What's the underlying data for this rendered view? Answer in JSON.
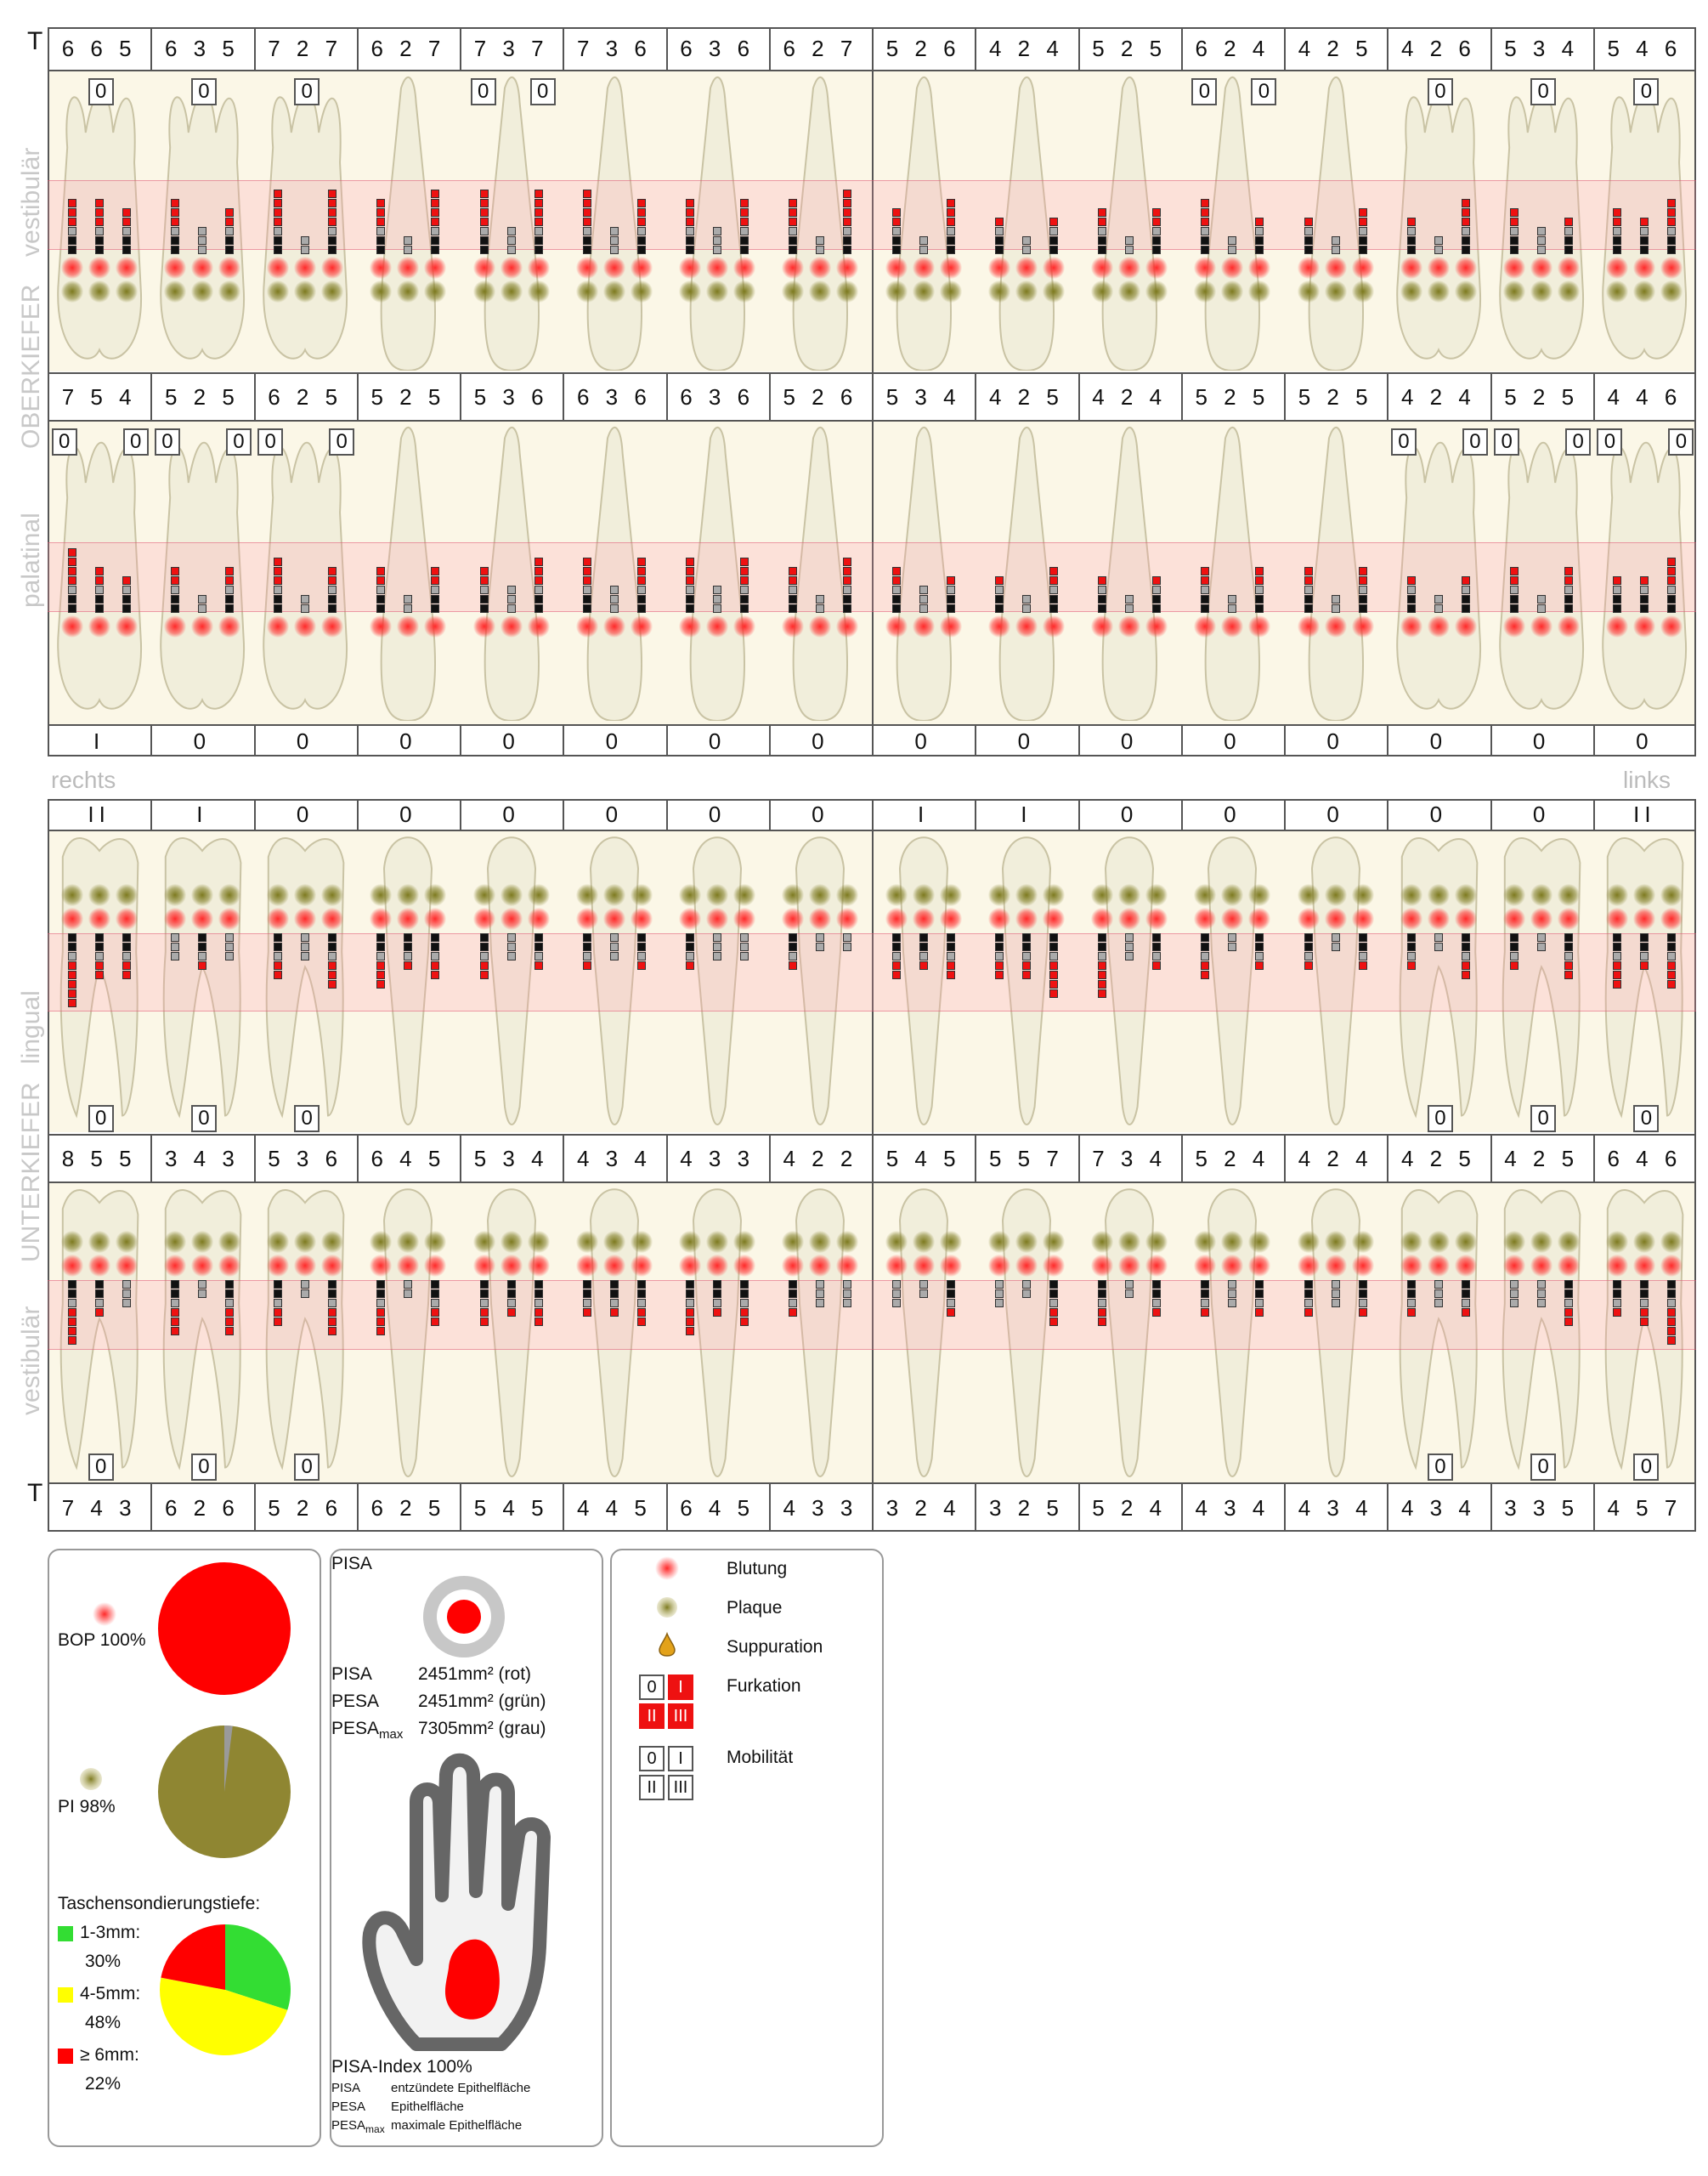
{
  "labels": {
    "t_top": "T",
    "t_bottom": "T",
    "vestibulaer_top": "vestibulär",
    "oberkiefer": "OBERKIEFER",
    "palatinal": "palatinal",
    "lingual": "lingual",
    "unterkiefer": "UNTERKIEFER",
    "vestibulaer_bottom": "vestibulär",
    "rechts": "rechts",
    "links": "links"
  },
  "upper_vest_depths": [
    "6 6 5",
    "6 3 5",
    "7 2 7",
    "6 2 7",
    "7 3 7",
    "7 3 6",
    "6 3 6",
    "6 2 7",
    "5 2 6",
    "4 2 4",
    "5 2 5",
    "6 2 4",
    "4 2 5",
    "4 2 6",
    "5 3 4",
    "5 4 6"
  ],
  "upper_pal_depths": [
    "7 5 4",
    "5 2 5",
    "6 2 5",
    "5 2 5",
    "5 3 6",
    "6 3 6",
    "6 3 6",
    "5 2 6",
    "5 3 4",
    "4 2 5",
    "4 2 4",
    "5 2 5",
    "5 2 5",
    "4 2 4",
    "5 2 5",
    "4 4 6"
  ],
  "upper_mobility": [
    "I",
    "0",
    "0",
    "0",
    "0",
    "0",
    "0",
    "0",
    "0",
    "0",
    "0",
    "0",
    "0",
    "0",
    "0",
    "0"
  ],
  "lower_mobility": [
    "II",
    "I",
    "0",
    "0",
    "0",
    "0",
    "0",
    "0",
    "I",
    "I",
    "0",
    "0",
    "0",
    "0",
    "0",
    "II"
  ],
  "lower_ling_depths": [
    "8 5 5",
    "3 4 3",
    "5 3 6",
    "6 4 5",
    "5 3 4",
    "4 3 4",
    "4 3 3",
    "4 2 2",
    "5 4 5",
    "5 5 7",
    "7 3 4",
    "5 2 4",
    "4 2 4",
    "4 2 5",
    "4 2 5",
    "6 4 6"
  ],
  "lower_vest_depths": [
    "7 4 3",
    "6 2 6",
    "5 2 6",
    "6 2 5",
    "5 4 5",
    "4 4 5",
    "6 4 5",
    "4 3 3",
    "3 2 4",
    "3 2 5",
    "5 2 4",
    "4 3 4",
    "4 3 4",
    "4 3 4",
    "3 3 5",
    "4 5 7"
  ],
  "furcation_upper_vest": [
    [
      "0"
    ],
    [
      "0"
    ],
    [
      "0"
    ],
    [],
    [
      "0",
      "0"
    ],
    [],
    [],
    [],
    [],
    [],
    [],
    [
      "0",
      "0"
    ],
    [],
    [
      "0"
    ],
    [
      "0"
    ],
    [
      "0"
    ]
  ],
  "furcation_upper_pal": [
    [
      "0",
      "0"
    ],
    [
      "0",
      "0"
    ],
    [
      "0",
      "0"
    ],
    [],
    [],
    [],
    [],
    [],
    [],
    [],
    [],
    [],
    [],
    [
      "0",
      "0"
    ],
    [
      "0",
      "0"
    ],
    [
      "0",
      "0"
    ]
  ],
  "furcation_lower_ling": [
    "0",
    "0",
    "0",
    "",
    "",
    "",
    "",
    "",
    "",
    "",
    "",
    "",
    "",
    "0",
    "0",
    "0"
  ],
  "furcation_lower_vest": [
    "0",
    "0",
    "0",
    "",
    "",
    "",
    "",
    "",
    "",
    "",
    "",
    "",
    "",
    "0",
    "0",
    "0"
  ],
  "stats": {
    "bop_label": "BOP 100%",
    "pi_label": "PI 98%",
    "pocket_title": "Taschensondierungstiefe:",
    "pocket_items": [
      {
        "label": "1-3mm:",
        "value": "30%",
        "color": "#33dd33"
      },
      {
        "label": "4-5mm:",
        "value": "48%",
        "color": "#ffff00"
      },
      {
        "label": "≥ 6mm:",
        "value": "22%",
        "color": "#ff0000"
      }
    ],
    "bop_value": 1.0,
    "pi_value": 0.98
  },
  "pisa": {
    "title": "PISA",
    "rows": [
      {
        "k": "PISA",
        "v": "2451mm² (rot)"
      },
      {
        "k": "PESA",
        "v": "2451mm² (grün)"
      },
      {
        "k": "PESA",
        "sub": "max",
        "v": "7305mm² (grau)"
      }
    ],
    "index": "PISA-Index 100%",
    "legend": [
      {
        "k": "PISA",
        "v": "entzündete Epithelfläche"
      },
      {
        "k": "PESA",
        "v": "Epithelfläche"
      },
      {
        "k": "PESA",
        "sub": "max",
        "v": "maximale Epithelfläche"
      }
    ]
  },
  "legend": {
    "items": [
      "Blutung",
      "Plaque",
      "Suppuration",
      "Furkation",
      "Mobilität"
    ],
    "furcation_symbols": [
      "0",
      "I",
      "II",
      "III"
    ],
    "mobility_symbols": [
      "0",
      "I",
      "II",
      "III"
    ]
  }
}
